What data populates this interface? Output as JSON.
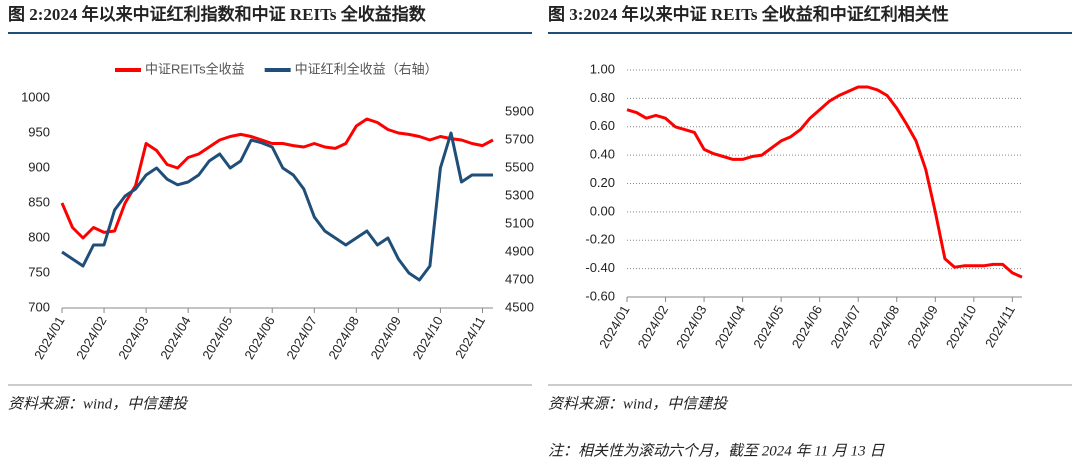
{
  "chart_data": [
    {
      "type": "line",
      "title": "图 2:2024 年以来中证红利指数和中证 REITs 全收益指数",
      "source": "资料来源：wind，中信建投",
      "categories": [
        "2024/01",
        null,
        null,
        null,
        "2024/02",
        null,
        null,
        null,
        "2024/03",
        null,
        null,
        null,
        "2024/04",
        null,
        null,
        null,
        "2024/05",
        null,
        null,
        null,
        "2024/06",
        null,
        null,
        null,
        "2024/07",
        null,
        null,
        null,
        "2024/08",
        null,
        null,
        null,
        "2024/09",
        null,
        null,
        null,
        "2024/10",
        null,
        null,
        null,
        "2024/11",
        null
      ],
      "series": [
        {
          "name": "中证REITs全收益",
          "color": "#ff0000",
          "values": [
            850,
            815,
            800,
            815,
            808,
            810,
            850,
            875,
            935,
            925,
            905,
            900,
            915,
            920,
            930,
            940,
            945,
            948,
            945,
            940,
            935,
            935,
            932,
            930,
            935,
            930,
            928,
            935,
            960,
            970,
            965,
            955,
            950,
            948,
            945,
            940,
            945,
            942,
            940,
            935,
            932,
            940
          ]
        },
        {
          "name": "中证红利全收益（右轴）",
          "color": "#1f4e79",
          "axis": "y2",
          "values": [
            4900,
            4850,
            4800,
            4950,
            4950,
            5200,
            5300,
            5350,
            5450,
            5500,
            5420,
            5380,
            5400,
            5450,
            5550,
            5600,
            5500,
            5550,
            5700,
            5680,
            5650,
            5500,
            5450,
            5350,
            5150,
            5050,
            5000,
            4950,
            5000,
            5050,
            4950,
            5000,
            4850,
            4750,
            4700,
            4800,
            5500,
            5750,
            5400,
            5450,
            5450,
            5450
          ]
        }
      ],
      "ylim": [
        700,
        1000
      ],
      "yticks": [
        700,
        750,
        800,
        850,
        900,
        950,
        1000
      ],
      "y2lim": [
        4500,
        6000
      ],
      "y2ticks": [
        4500,
        4700,
        4900,
        5100,
        5300,
        5500,
        5700,
        5900
      ],
      "grid": false,
      "legend": "top"
    },
    {
      "type": "line",
      "title": "图 3:2024 年以来中证 REITs 全收益和中证红利相关性",
      "source": "资料来源：wind，中信建投",
      "note": "注：相关性为滚动六个月，截至 2024 年 11 月 13 日",
      "categories": [
        "2024/01",
        null,
        null,
        null,
        "2024/02",
        null,
        null,
        null,
        "2024/03",
        null,
        null,
        null,
        "2024/04",
        null,
        null,
        null,
        "2024/05",
        null,
        null,
        null,
        "2024/06",
        null,
        null,
        null,
        "2024/07",
        null,
        null,
        null,
        "2024/08",
        null,
        null,
        null,
        "2024/09",
        null,
        null,
        null,
        "2024/10",
        null,
        null,
        null,
        "2024/11",
        null
      ],
      "values": [
        0.72,
        0.7,
        0.66,
        0.68,
        0.66,
        0.6,
        0.58,
        0.56,
        0.44,
        0.41,
        0.39,
        0.37,
        0.37,
        0.39,
        0.4,
        0.45,
        0.5,
        0.53,
        0.58,
        0.66,
        0.72,
        0.78,
        0.82,
        0.85,
        0.88,
        0.88,
        0.86,
        0.82,
        0.73,
        0.62,
        0.5,
        0.3,
        0.0,
        -0.33,
        -0.39,
        -0.38,
        -0.38,
        -0.38,
        -0.37,
        -0.37,
        -0.43,
        -0.46
      ],
      "color": "#ff0000",
      "ylim": [
        -0.6,
        1.0
      ],
      "yticks": [
        {
          "value": -0.6,
          "label": "-0.60"
        },
        {
          "value": -0.4,
          "label": "-0.40"
        },
        {
          "value": -0.2,
          "label": "-0.20"
        },
        {
          "value": 0,
          "label": "0.00"
        },
        {
          "value": 0.2,
          "label": "0.20"
        },
        {
          "value": 0.4,
          "label": "0.40"
        },
        {
          "value": 0.6,
          "label": "0.60"
        },
        {
          "value": 0.8,
          "label": "0.80"
        },
        {
          "value": 1.0,
          "label": "1.00"
        }
      ],
      "grid": true
    }
  ]
}
